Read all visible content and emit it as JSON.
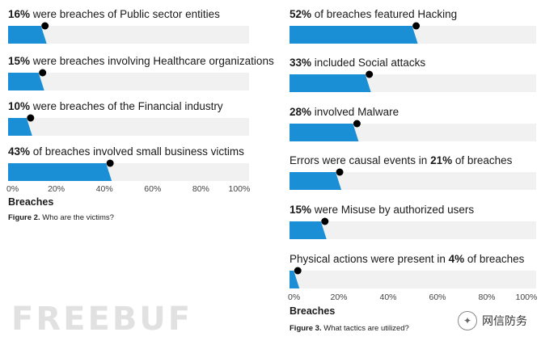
{
  "chart_data": [
    {
      "type": "bar",
      "title": "Who are the victims?",
      "figure_label": "Figure 2.",
      "xlabel": "Breaches",
      "xlim": [
        0,
        100
      ],
      "ticks": [
        "0%",
        "20%",
        "40%",
        "60%",
        "80%",
        "100%"
      ],
      "bars": [
        {
          "bold": "16%",
          "text": " were breaches of Public sector entities",
          "value": 16
        },
        {
          "bold": "15%",
          "text": " were breaches involving Healthcare organizations",
          "value": 15
        },
        {
          "bold": "10%",
          "text": " were breaches of the Financial industry",
          "value": 10
        },
        {
          "bold": "43%",
          "text": " of breaches involved small business victims",
          "value": 43
        }
      ]
    },
    {
      "type": "bar",
      "title": "What tactics are utilized?",
      "figure_label": "Figure 3.",
      "xlabel": "Breaches",
      "xlim": [
        0,
        100
      ],
      "ticks": [
        "0%",
        "20%",
        "40%",
        "60%",
        "80%",
        "100%"
      ],
      "bars": [
        {
          "bold": "52%",
          "text": " of breaches featured Hacking",
          "value": 52
        },
        {
          "bold": "33%",
          "text": " included Social attacks",
          "value": 33
        },
        {
          "bold": "28%",
          "text": " involved Malware",
          "value": 28
        },
        {
          "pre": "Errors were causal events in ",
          "bold": "21%",
          "text": " of breaches",
          "value": 21
        },
        {
          "bold": "15%",
          "text": " were Misuse by authorized users",
          "value": 15
        },
        {
          "pre": "Physical actions were present in ",
          "bold": "4%",
          "text": " of breaches",
          "value": 4
        }
      ]
    }
  ],
  "colors": {
    "bar": "#1a8fd6",
    "track": "#f1f1f1",
    "marker": "#000000"
  },
  "watermarks": {
    "left": "FREEBUF",
    "right": "网信防务",
    "right_icon": "wechat-icon"
  }
}
